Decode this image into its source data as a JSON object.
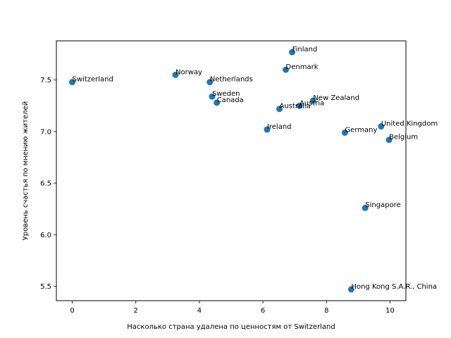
{
  "chart_data": {
    "type": "scatter",
    "title": "",
    "xlabel": "Насколько страна удалена по ценностям от Switzerland",
    "ylabel": "Уровень счастья по мнению жителей",
    "xlim": [
      -0.5,
      10.5
    ],
    "ylim": [
      5.36,
      7.88
    ],
    "xticks": [
      0,
      2,
      4,
      6,
      8,
      10
    ],
    "xtick_labels": [
      "0",
      "2",
      "4",
      "6",
      "8",
      "10"
    ],
    "yticks": [
      5.5,
      6.0,
      6.5,
      7.0,
      7.5
    ],
    "ytick_labels": [
      "5.5",
      "6.0",
      "6.5",
      "7.0",
      "7.5"
    ],
    "grid": false,
    "marker_color": "#1f77b4",
    "points": [
      {
        "label": "Switzerland",
        "x": 0.0,
        "y": 7.48
      },
      {
        "label": "Norway",
        "x": 3.25,
        "y": 7.55
      },
      {
        "label": "Netherlands",
        "x": 4.33,
        "y": 7.48
      },
      {
        "label": "Sweden",
        "x": 4.4,
        "y": 7.34
      },
      {
        "label": "Canada",
        "x": 4.55,
        "y": 7.28
      },
      {
        "label": "Finland",
        "x": 6.92,
        "y": 7.77
      },
      {
        "label": "Denmark",
        "x": 6.72,
        "y": 7.6
      },
      {
        "label": "Australia",
        "x": 6.52,
        "y": 7.22
      },
      {
        "label": "Austria",
        "x": 7.15,
        "y": 7.25
      },
      {
        "label": "New Zealand",
        "x": 7.58,
        "y": 7.3
      },
      {
        "label": "Ireland",
        "x": 6.13,
        "y": 7.02
      },
      {
        "label": "Germany",
        "x": 8.58,
        "y": 6.99
      },
      {
        "label": "United Kingdom",
        "x": 9.72,
        "y": 7.05
      },
      {
        "label": "Belgium",
        "x": 9.97,
        "y": 6.92
      },
      {
        "label": "Singapore",
        "x": 9.22,
        "y": 6.26
      },
      {
        "label": "Hong Kong S.A.R., China",
        "x": 8.78,
        "y": 5.47
      }
    ]
  }
}
